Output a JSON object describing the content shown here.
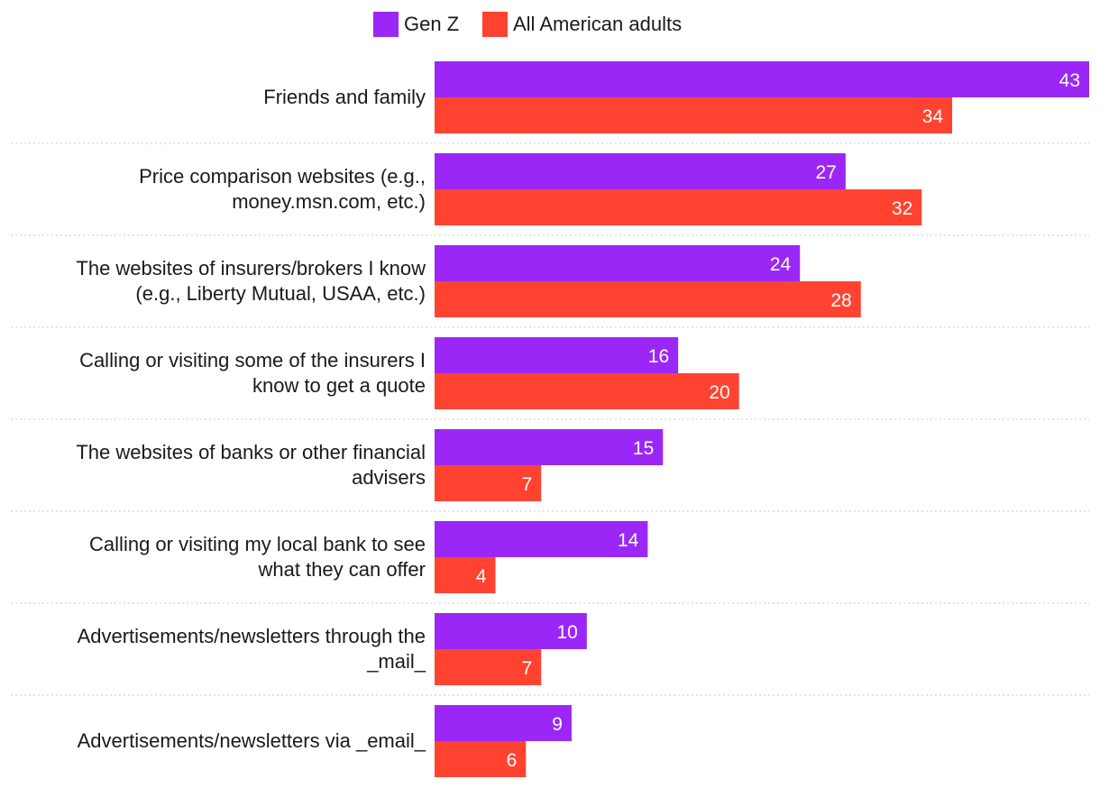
{
  "chart_data": {
    "type": "bar",
    "orientation": "horizontal",
    "title": "",
    "xlabel": "",
    "ylabel": "",
    "xlim": [
      0,
      43
    ],
    "grid": false,
    "legend_position": "top-center",
    "categories": [
      [
        "Friends and family"
      ],
      [
        "Price comparison websites (e.g.,",
        "money.msn.com, etc.)"
      ],
      [
        "The websites of insurers/brokers I know",
        "(e.g., Liberty Mutual, USAA, etc.)"
      ],
      [
        "Calling or visiting some of the insurers I",
        "know to get a quote"
      ],
      [
        "The websites of banks or other financial",
        "advisers"
      ],
      [
        "Calling or visiting my local bank to see",
        "what they can offer"
      ],
      [
        "Advertisements/newsletters through the",
        "_mail_"
      ],
      [
        "Advertisements/newsletters via _email_"
      ]
    ],
    "series": [
      {
        "name": "Gen Z",
        "color": "#9b27f7",
        "values": [
          43,
          27,
          24,
          16,
          15,
          14,
          10,
          9
        ]
      },
      {
        "name": "All American adults",
        "color": "#ff4330",
        "values": [
          34,
          32,
          28,
          20,
          7,
          4,
          7,
          6
        ]
      }
    ]
  }
}
